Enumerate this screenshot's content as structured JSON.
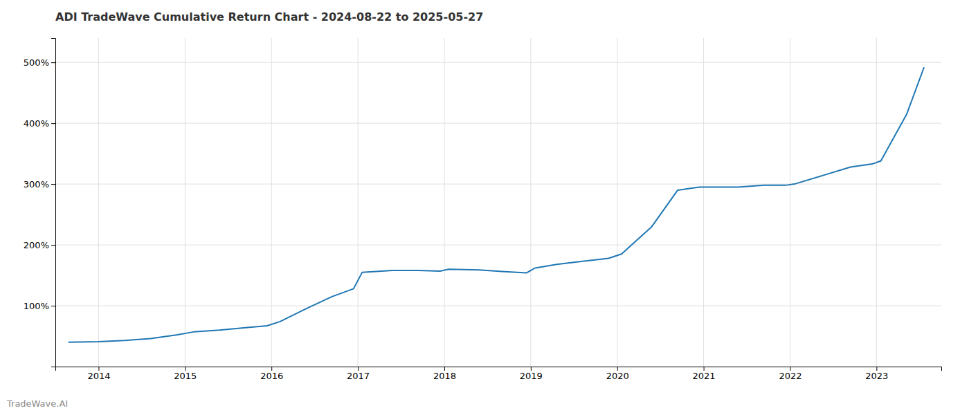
{
  "chart_data": {
    "type": "line",
    "title": "ADI TradeWave Cumulative Return Chart - 2024-08-22 to 2025-05-27",
    "annotations": [
      "TradeWave.AI"
    ],
    "color": "#1f77b4",
    "x": [
      2013.65,
      2014.0,
      2014.3,
      2014.6,
      2014.9,
      2015.1,
      2015.4,
      2015.7,
      2015.95,
      2016.1,
      2016.4,
      2016.7,
      2016.95,
      2017.05,
      2017.4,
      2017.7,
      2017.95,
      2018.05,
      2018.4,
      2018.7,
      2018.95,
      2019.05,
      2019.3,
      2019.6,
      2019.9,
      2020.05,
      2020.4,
      2020.7,
      2020.95,
      2021.05,
      2021.4,
      2021.7,
      2021.95,
      2022.05,
      2022.4,
      2022.7,
      2022.95,
      2023.05,
      2023.35,
      2023.55
    ],
    "values": [
      40,
      41,
      43,
      46,
      52,
      57,
      60,
      64,
      67,
      74,
      95,
      115,
      128,
      155,
      158,
      158,
      157,
      160,
      159,
      156,
      154,
      162,
      168,
      173,
      178,
      185,
      230,
      290,
      295,
      295,
      295,
      298,
      298,
      300,
      315,
      328,
      333,
      338,
      415,
      492
    ],
    "xlim": [
      2013.5,
      2023.75
    ],
    "xticks": [
      2014,
      2015,
      2016,
      2017,
      2018,
      2019,
      2020,
      2021,
      2022,
      2023
    ],
    "ylim": [
      0,
      540
    ],
    "yticks": [
      {
        "value": 100,
        "label": "100%"
      },
      {
        "value": 200,
        "label": "200%"
      },
      {
        "value": 300,
        "label": "300%"
      },
      {
        "value": 400,
        "label": "400%"
      },
      {
        "value": 500,
        "label": "500%"
      }
    ],
    "grid": true
  }
}
